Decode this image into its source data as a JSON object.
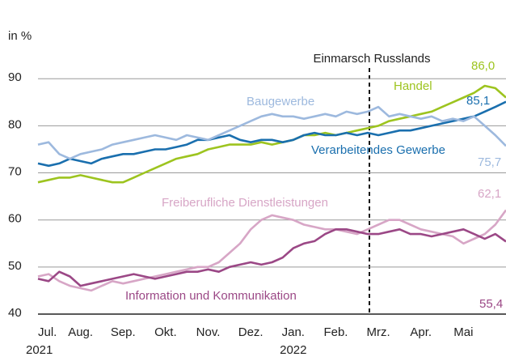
{
  "chart_data": {
    "type": "line",
    "unit_label": "in %",
    "annotation": "Einmarsch Russlands",
    "years": [
      "2021",
      "2022"
    ],
    "categories": [
      "Jul.",
      null,
      null,
      null,
      "Aug.",
      null,
      null,
      null,
      "Sep.",
      null,
      null,
      null,
      "Okt.",
      null,
      null,
      null,
      "Nov.",
      null,
      null,
      null,
      "Dez.",
      null,
      null,
      null,
      "Jan.",
      null,
      null,
      null,
      "Feb.",
      null,
      null,
      null,
      "Mrz.",
      null,
      null,
      null,
      "Apr.",
      null,
      null,
      null,
      "Mai",
      null,
      null,
      null,
      null
    ],
    "ylim": [
      40,
      92
    ],
    "yticks": [
      40,
      50,
      60,
      70,
      80,
      90
    ],
    "grid": true,
    "series": [
      {
        "name": "Handel",
        "color": "#9dc41f",
        "values": [
          68,
          68.5,
          69,
          69,
          69.5,
          69,
          68.5,
          68,
          68,
          69,
          70,
          71,
          72,
          73,
          73.5,
          74,
          75,
          75.5,
          76,
          76,
          76,
          76.5,
          76,
          76.5,
          77,
          78,
          78,
          78.5,
          78,
          78.5,
          79,
          79.5,
          80,
          81,
          81.5,
          82,
          82.5,
          83,
          84,
          85,
          86,
          87,
          88.5,
          88,
          86.0
        ],
        "value_labels": [
          null,
          null,
          null,
          null,
          null,
          null,
          null,
          null,
          null,
          null,
          null,
          null,
          null,
          null,
          null,
          null,
          null,
          null,
          null,
          null,
          null,
          null,
          null,
          null,
          null,
          null,
          null,
          null,
          null,
          null,
          null,
          null,
          null,
          null,
          null,
          null,
          null,
          null,
          null,
          null,
          null,
          null,
          null,
          null,
          "86,0"
        ]
      },
      {
        "name": "Verarbeitendes Gewerbe",
        "color": "#1a6fae",
        "values": [
          72,
          71.5,
          72,
          73,
          72.5,
          72,
          73,
          73.5,
          74,
          74,
          74.5,
          75,
          75,
          75.5,
          76,
          77,
          77,
          77.5,
          78,
          77,
          76.5,
          77,
          77,
          76.5,
          77,
          78,
          78.5,
          78,
          78,
          78.5,
          78,
          78.5,
          78,
          78.5,
          79,
          79,
          79.5,
          80,
          80.5,
          81,
          81.5,
          82,
          83,
          84,
          85.1
        ],
        "value_labels": [
          null,
          null,
          null,
          null,
          null,
          null,
          null,
          null,
          null,
          null,
          null,
          null,
          null,
          null,
          null,
          null,
          null,
          null,
          null,
          null,
          null,
          null,
          null,
          null,
          null,
          null,
          null,
          null,
          null,
          null,
          null,
          null,
          null,
          null,
          null,
          null,
          null,
          null,
          null,
          null,
          null,
          null,
          null,
          null,
          "85,1"
        ]
      },
      {
        "name": "Baugewerbe",
        "color": "#9db9de",
        "values": [
          76,
          76.5,
          74,
          73,
          74,
          74.5,
          75,
          76,
          76.5,
          77,
          77.5,
          78,
          77.5,
          77,
          78,
          77.5,
          77,
          78,
          79,
          80,
          81,
          82,
          82.5,
          82,
          82,
          81.5,
          82,
          82.5,
          82,
          83,
          82.5,
          83,
          84,
          82,
          82.5,
          82,
          81.5,
          82,
          81,
          81.5,
          81,
          82,
          80,
          78,
          75.7
        ],
        "value_labels": [
          null,
          null,
          null,
          null,
          null,
          null,
          null,
          null,
          null,
          null,
          null,
          null,
          null,
          null,
          null,
          null,
          null,
          null,
          null,
          null,
          null,
          null,
          null,
          null,
          null,
          null,
          null,
          null,
          null,
          null,
          null,
          null,
          null,
          null,
          null,
          null,
          null,
          null,
          null,
          null,
          null,
          null,
          null,
          null,
          "75,7"
        ]
      },
      {
        "name": "Freiberufliche Dienstleistungen",
        "color": "#d7a6c6",
        "values": [
          48,
          48.5,
          47,
          46,
          45.5,
          45,
          46,
          47,
          46.5,
          47,
          47.5,
          48,
          48.5,
          49,
          49.5,
          50,
          50,
          51,
          53,
          55,
          58,
          60,
          61,
          60.5,
          60,
          59,
          58.5,
          58,
          58,
          57.5,
          57,
          58,
          59,
          60,
          60,
          59,
          58,
          57.5,
          57,
          56.5,
          55,
          56,
          57,
          59,
          62.1
        ],
        "value_labels": [
          null,
          null,
          null,
          null,
          null,
          null,
          null,
          null,
          null,
          null,
          null,
          null,
          null,
          null,
          null,
          null,
          null,
          null,
          null,
          null,
          null,
          null,
          null,
          null,
          null,
          null,
          null,
          null,
          null,
          null,
          null,
          null,
          null,
          null,
          null,
          null,
          null,
          null,
          null,
          null,
          null,
          null,
          null,
          null,
          "62,1"
        ]
      },
      {
        "name": "Information und Kommunikation",
        "color": "#9b4886",
        "values": [
          47.5,
          47,
          49,
          48,
          46,
          46.5,
          47,
          47.5,
          48,
          48.5,
          48,
          47.5,
          48,
          48.5,
          49,
          49,
          49.5,
          49,
          50,
          50.5,
          51,
          50.5,
          51,
          52,
          54,
          55,
          55.5,
          57,
          58,
          58,
          57.5,
          57,
          57,
          57.5,
          58,
          57,
          57,
          56.5,
          57,
          57.5,
          58,
          57,
          56,
          57,
          55.4
        ],
        "value_labels": [
          null,
          null,
          null,
          null,
          null,
          null,
          null,
          null,
          null,
          null,
          null,
          null,
          null,
          null,
          null,
          null,
          null,
          null,
          null,
          null,
          null,
          null,
          null,
          null,
          null,
          null,
          null,
          null,
          null,
          null,
          null,
          null,
          null,
          null,
          null,
          null,
          null,
          null,
          null,
          null,
          null,
          null,
          null,
          null,
          "55,4"
        ]
      }
    ]
  }
}
